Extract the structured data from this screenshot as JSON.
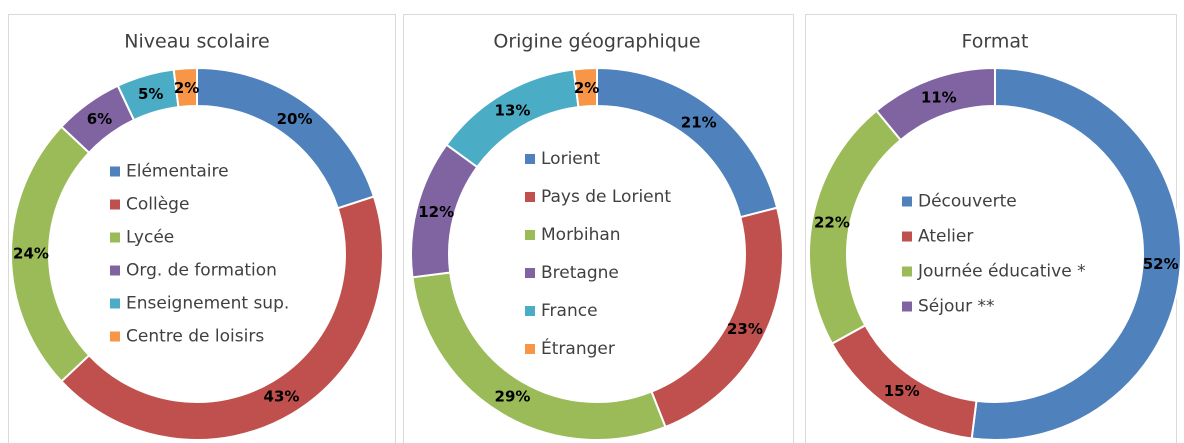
{
  "chart_data": [
    {
      "type": "donut",
      "title": "Niveau scolaire",
      "categories": [
        "Elémentaire",
        "Collège",
        "Lycée",
        "Org. de formation",
        "Enseignement sup.",
        "Centre de loisirs"
      ],
      "values": [
        20,
        43,
        24,
        6,
        5,
        2
      ],
      "value_labels": [
        "20%",
        "43%",
        "24%",
        "6%",
        "5%",
        "2%"
      ],
      "colors": [
        "#4f81bd",
        "#c0504d",
        "#9bbb59",
        "#8064a2",
        "#4bacc6",
        "#f79646"
      ]
    },
    {
      "type": "donut",
      "title": "Origine  géographique",
      "categories": [
        "Lorient",
        "Pays de Lorient",
        "Morbihan",
        "Bretagne",
        "France",
        "Étranger"
      ],
      "values": [
        21,
        23,
        29,
        12,
        13,
        2
      ],
      "value_labels": [
        "21%",
        "23%",
        "29%",
        "12%",
        "13%",
        "2%"
      ],
      "colors": [
        "#4f81bd",
        "#c0504d",
        "#9bbb59",
        "#8064a2",
        "#4bacc6",
        "#f79646"
      ]
    },
    {
      "type": "donut",
      "title": "Format",
      "categories": [
        "Découverte",
        "Atelier",
        "Journée éducative *",
        "Séjour **"
      ],
      "values": [
        52,
        15,
        22,
        11
      ],
      "value_labels": [
        "52%",
        "15%",
        "22%",
        "11%"
      ],
      "colors": [
        "#4f81bd",
        "#c0504d",
        "#9bbb59",
        "#8064a2"
      ]
    }
  ]
}
